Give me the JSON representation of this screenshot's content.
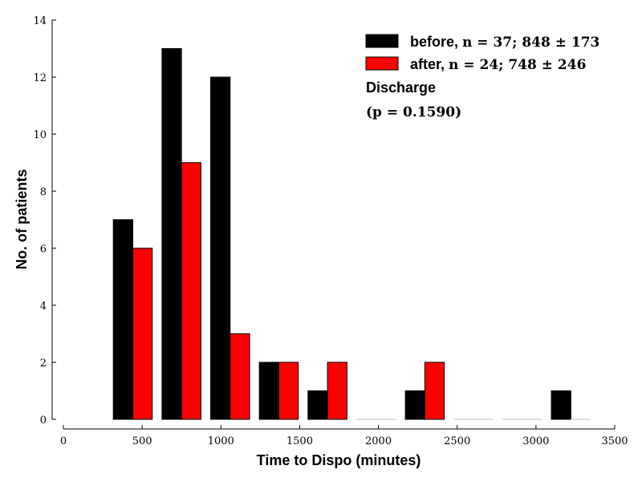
{
  "chart_data": {
    "type": "bar",
    "xlabel": "Time to Dispo (minutes)",
    "ylabel": "No. of patients",
    "xlim": [
      0,
      3500
    ],
    "ylim": [
      0,
      14
    ],
    "x_ticks": [
      0,
      500,
      1000,
      1500,
      2000,
      2500,
      3000,
      3500
    ],
    "y_ticks": [
      0,
      2,
      4,
      6,
      8,
      10,
      12,
      14
    ],
    "bin_edges": [
      286,
      595,
      904,
      1213,
      1522,
      1831,
      2140,
      2449,
      2758,
      3067,
      3376
    ],
    "grid": false,
    "legend_position": "top-right",
    "series": [
      {
        "name": "before,",
        "stats": "n = 37; 848 ± 173",
        "color": "#000000",
        "values": [
          7,
          13,
          12,
          2,
          1,
          0,
          1,
          0,
          0,
          1
        ]
      },
      {
        "name": "after,",
        "stats": "n = 24; 748 ± 246",
        "color": "#ff0000",
        "values": [
          6,
          9,
          3,
          2,
          2,
          0,
          2,
          0,
          0,
          0
        ]
      }
    ],
    "annotation": {
      "title": "Discharge",
      "pvalue": "(p = 0.1590)"
    }
  }
}
